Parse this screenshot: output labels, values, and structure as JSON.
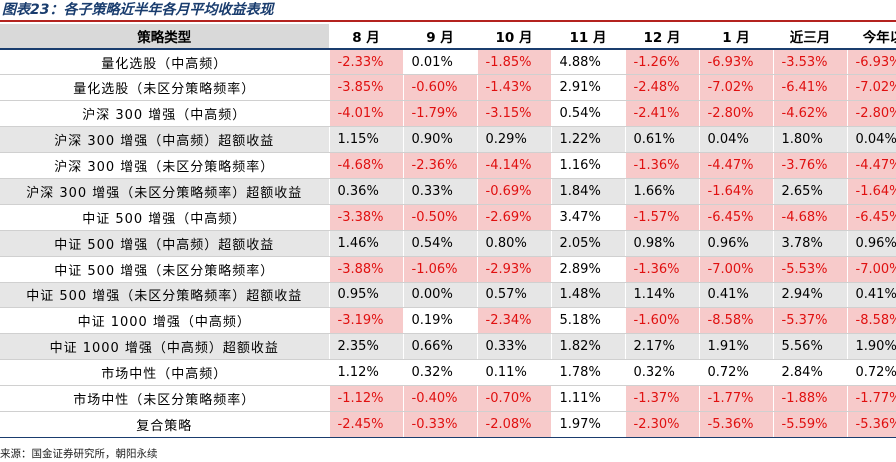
{
  "title": "图表23：各子策略近半年各月平均收益表现",
  "table": {
    "headers": [
      "策略类型",
      "8 月",
      "9 月",
      "10 月",
      "11 月",
      "12 月",
      "1 月",
      "近三月",
      "今年以"
    ],
    "rows": [
      {
        "name": "量化选股（中高频）",
        "values": [
          "-2.33%",
          "0.01%",
          "-1.85%",
          "4.88%",
          "-1.26%",
          "-6.93%",
          "-3.53%",
          "-6.93%"
        ],
        "shaded": false
      },
      {
        "name": "量化选股（未区分策略频率）",
        "values": [
          "-3.85%",
          "-0.60%",
          "-1.43%",
          "2.91%",
          "-2.48%",
          "-7.02%",
          "-6.41%",
          "-7.02%"
        ],
        "shaded": false
      },
      {
        "name": "沪深 300 增强（中高频）",
        "values": [
          "-4.01%",
          "-1.79%",
          "-3.15%",
          "0.54%",
          "-2.41%",
          "-2.80%",
          "-4.62%",
          "-2.80%"
        ],
        "shaded": false
      },
      {
        "name": "沪深 300 增强（中高频）超额收益",
        "values": [
          "1.15%",
          "0.90%",
          "0.29%",
          "1.22%",
          "0.61%",
          "0.04%",
          "1.80%",
          "0.04%"
        ],
        "shaded": true
      },
      {
        "name": "沪深 300 增强（未区分策略频率）",
        "values": [
          "-4.68%",
          "-2.36%",
          "-4.14%",
          "1.16%",
          "-1.36%",
          "-4.47%",
          "-3.76%",
          "-4.47%"
        ],
        "shaded": false
      },
      {
        "name": "沪深 300 增强（未区分策略频率）超额收益",
        "values": [
          "0.36%",
          "0.33%",
          "-0.69%",
          "1.84%",
          "1.66%",
          "-1.64%",
          "2.65%",
          "-1.64%"
        ],
        "shaded": true
      },
      {
        "name": "中证 500 增强（中高频）",
        "values": [
          "-3.38%",
          "-0.50%",
          "-2.69%",
          "3.47%",
          "-1.57%",
          "-6.45%",
          "-4.68%",
          "-6.45%"
        ],
        "shaded": false
      },
      {
        "name": "中证 500 增强（中高频）超额收益",
        "values": [
          "1.46%",
          "0.54%",
          "0.80%",
          "2.05%",
          "0.98%",
          "0.96%",
          "3.78%",
          "0.96%"
        ],
        "shaded": true
      },
      {
        "name": "中证 500 增强（未区分策略频率）",
        "values": [
          "-3.88%",
          "-1.06%",
          "-2.93%",
          "2.89%",
          "-1.36%",
          "-7.00%",
          "-5.53%",
          "-7.00%"
        ],
        "shaded": false
      },
      {
        "name": "中证 500 增强（未区分策略频率）超额收益",
        "values": [
          "0.95%",
          "0.00%",
          "0.57%",
          "1.48%",
          "1.14%",
          "0.41%",
          "2.94%",
          "0.41%"
        ],
        "shaded": true
      },
      {
        "name": "中证 1000 增强（中高频）",
        "values": [
          "-3.19%",
          "0.19%",
          "-2.34%",
          "5.18%",
          "-1.60%",
          "-8.58%",
          "-5.37%",
          "-8.58%"
        ],
        "shaded": false
      },
      {
        "name": "中证 1000 增强（中高频）超额收益",
        "values": [
          "2.35%",
          "0.66%",
          "0.33%",
          "1.82%",
          "2.17%",
          "1.91%",
          "5.56%",
          "1.90%"
        ],
        "shaded": true
      },
      {
        "name": "市场中性（中高频）",
        "values": [
          "1.12%",
          "0.32%",
          "0.11%",
          "1.78%",
          "0.32%",
          "0.72%",
          "2.84%",
          "0.72%"
        ],
        "shaded": false
      },
      {
        "name": "市场中性（未区分策略频率）",
        "values": [
          "-1.12%",
          "-0.40%",
          "-0.70%",
          "1.11%",
          "-1.37%",
          "-1.77%",
          "-1.88%",
          "-1.77%"
        ],
        "shaded": false
      },
      {
        "name": "复合策略",
        "values": [
          "-2.45%",
          "-0.33%",
          "-2.08%",
          "1.97%",
          "-2.30%",
          "-5.36%",
          "-5.59%",
          "-5.36%"
        ],
        "shaded": false
      }
    ]
  },
  "source": "来源：国金证券研究所，朝阳永续",
  "colors": {
    "negative_text": "#e01010",
    "negative_fill": "#f7caca",
    "shaded_row": "#e6e6e6",
    "title_text": "#1a3d6e",
    "title_rule": "#b4231f"
  }
}
